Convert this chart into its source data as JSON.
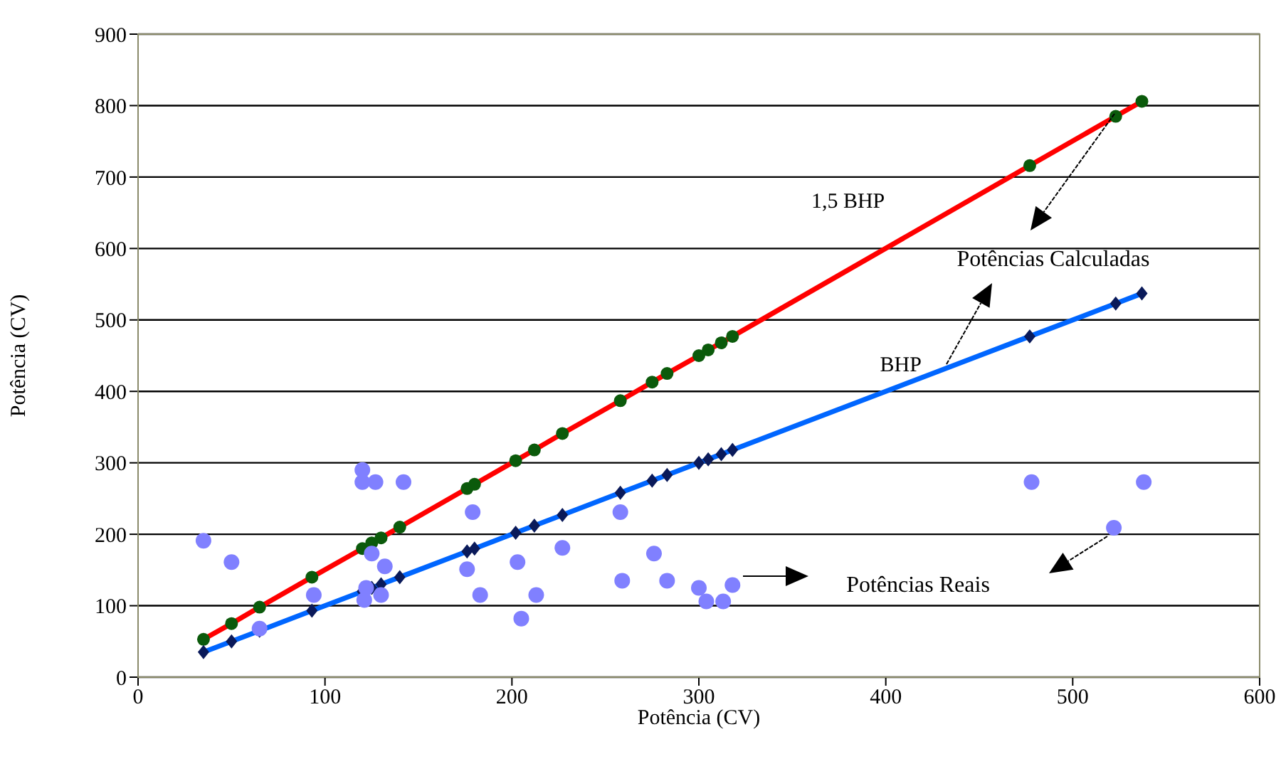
{
  "chart_data": {
    "type": "line",
    "xlabel": "Potência (CV)",
    "ylabel": "Potência (CV)",
    "xlim": [
      0,
      600
    ],
    "xticks": [
      0,
      100,
      200,
      300,
      400,
      500,
      600
    ],
    "ylim": [
      0,
      900
    ],
    "yticks": [
      0,
      100,
      200,
      300,
      400,
      500,
      600,
      700,
      800,
      900
    ],
    "grid": "y",
    "legend": false,
    "series": [
      {
        "name": "1,5 BHP",
        "color": "#ff0000",
        "marker": "circle",
        "x": [
          35,
          50,
          65,
          93,
          120,
          125,
          130,
          140,
          176,
          180,
          202,
          212,
          227,
          258,
          275,
          283,
          300,
          305,
          312,
          318,
          477,
          523,
          537
        ],
        "values": [
          53,
          75,
          98,
          140,
          180,
          188,
          195,
          210,
          264,
          270,
          303,
          318,
          341,
          387,
          413,
          425,
          450,
          458,
          468,
          477,
          716,
          785,
          806
        ]
      },
      {
        "name": "BHP",
        "color": "#0066ff",
        "marker": "diamond",
        "x": [
          35,
          50,
          65,
          93,
          120,
          125,
          130,
          140,
          176,
          180,
          202,
          212,
          227,
          258,
          275,
          283,
          300,
          305,
          312,
          318,
          477,
          523,
          537
        ],
        "values": [
          35,
          50,
          65,
          93,
          120,
          125,
          130,
          140,
          176,
          180,
          202,
          212,
          227,
          258,
          275,
          283,
          300,
          305,
          312,
          318,
          477,
          523,
          537
        ]
      },
      {
        "type": "scatter",
        "color": "#8080ff",
        "marker": "circle",
        "x": [
          35,
          50,
          65,
          94,
          120,
          120,
          127,
          142,
          122,
          121,
          125,
          132,
          130,
          179,
          176,
          183,
          203,
          205,
          213,
          227,
          258,
          259,
          276,
          283,
          300,
          304,
          313,
          318,
          478,
          522,
          538
        ],
        "values": [
          191,
          161,
          68,
          115,
          290,
          273,
          273,
          273,
          125,
          108,
          173,
          155,
          115,
          231,
          151,
          115,
          161,
          82,
          115,
          181,
          231,
          135,
          173,
          135,
          125,
          106,
          106,
          129,
          273,
          209,
          273
        ]
      }
    ],
    "annotations": [
      "Potências Calculadas",
      "Potências Reais"
    ]
  }
}
